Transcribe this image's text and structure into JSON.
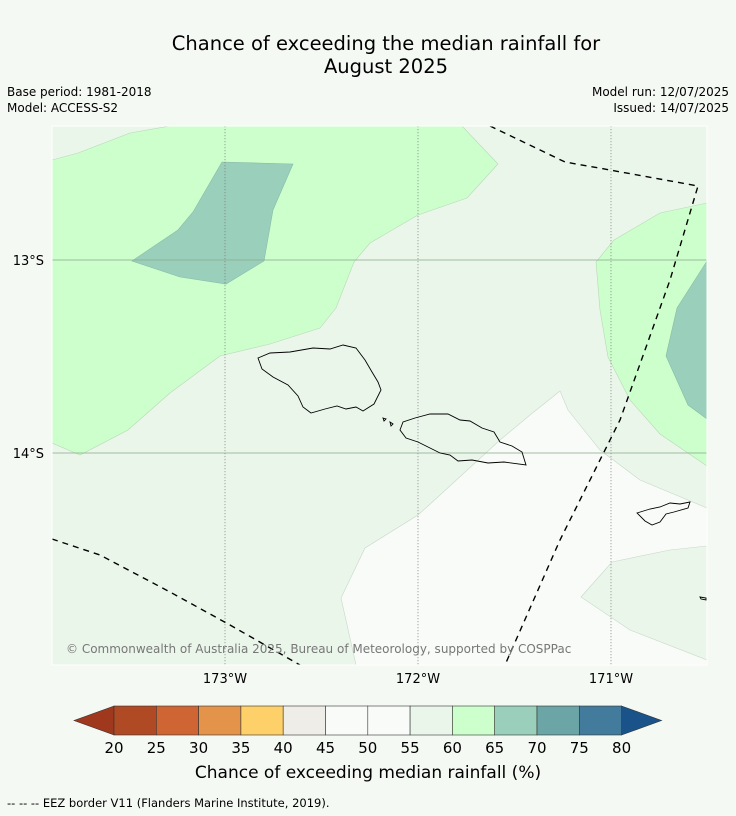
{
  "title": {
    "line1": "Chance of exceeding the median rainfall for",
    "line2": "August 2025"
  },
  "meta": {
    "base_period": "Base period: 1981-2018",
    "model": "Model: ACCESS-S2",
    "model_run": "Model run: 12/07/2025",
    "issued": "Issued: 14/07/2025"
  },
  "map": {
    "lat_labels": [
      "13°S",
      "14°S"
    ],
    "lon_labels": [
      "173°W",
      "172°W",
      "171°W"
    ],
    "copyright": "© Commonwealth of Australia 2025, Bureau of Meteorology, supported by COSPPac"
  },
  "colorbar": {
    "ticks": [
      "20",
      "25",
      "30",
      "35",
      "40",
      "45",
      "50",
      "55",
      "60",
      "65",
      "70",
      "75",
      "80"
    ],
    "colors": [
      "#af4a24",
      "#cf6533",
      "#e3944a",
      "#fdd06a",
      "#eeede8",
      "#f8fbf7",
      "#f8fbf7",
      "#ebf6eb",
      "#ccffcc",
      "#9ad0bb",
      "#6ca5a6",
      "#427b9c"
    ],
    "under_color": "#a0381e",
    "over_color": "#19538a",
    "label": "Chance of exceeding median rainfall (%)"
  },
  "footnote": "--  --  -- EEZ border V11 (Flanders Marine Institute, 2019)."
}
